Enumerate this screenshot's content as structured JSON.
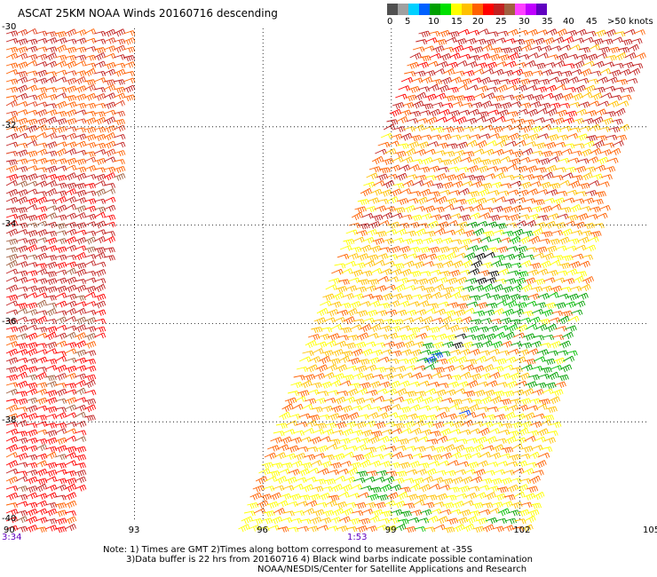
{
  "title": "ASCAT 25KM NOAA Winds 20160716 descending",
  "colorbar": {
    "colors": [
      "#505050",
      "#a0a0a0",
      "#00d0ff",
      "#0060ff",
      "#00a000",
      "#00e000",
      "#ffff00",
      "#ffc000",
      "#ff6000",
      "#ff0000",
      "#c02020",
      "#a06040",
      "#ff40ff",
      "#c000ff",
      "#6000c0"
    ],
    "labels": [
      "0",
      "5",
      "10",
      "15",
      "20",
      "25",
      "30",
      "35",
      "40",
      "45",
      ">50 knots"
    ]
  },
  "lat_labels": [
    "-30",
    "-32",
    "-34",
    "-36",
    "-38",
    "-40"
  ],
  "lon_labels": [
    "90",
    "93",
    "96",
    "99",
    "102",
    "105"
  ],
  "time_labels": [
    {
      "text": "3:34",
      "color": "#6000c0"
    },
    {
      "text": "1:53",
      "color": "#6000c0"
    }
  ],
  "notes": [
    "Note: 1) Times are GMT 2)Times along bottom correspond to measurement at -35S",
    "3)Data buffer is 22 hrs from 20160716 4) Black wind barbs indicate possible contamination",
    "NOAA/NESDIS/Center for Satellite Applications and Research"
  ],
  "map": {
    "lon_range": [
      90,
      105
    ],
    "lat_range": [
      -40,
      -30
    ],
    "gridlines": "dotted",
    "swaths": [
      {
        "name": "west-swath",
        "dominant_colors": [
          "#c02020",
          "#ff6000",
          "#a06040"
        ]
      },
      {
        "name": "east-swath",
        "dominant_colors": [
          "#ffc000",
          "#ff6000",
          "#c02020",
          "#ffff00",
          "#00a000"
        ]
      }
    ]
  }
}
